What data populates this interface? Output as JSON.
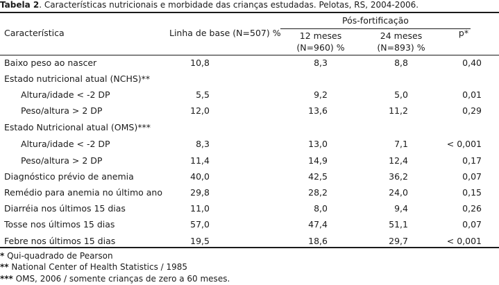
{
  "caption": {
    "label": "Tabela 2",
    "text": ". Características nutricionais e morbidade das crianças estudadas. Pelotas, RS, 2004-2006."
  },
  "header": {
    "characteristic": "Característica",
    "baseline": "Linha de base (N=507) %",
    "post": "Pós-fortificação",
    "m12_line1": "12 meses",
    "m12_line2": "(N=960) %",
    "m24_line1": "24 meses",
    "m24_line2": "(N=893) %",
    "p": "p*"
  },
  "rows": [
    {
      "label": "Baixo peso ao nascer",
      "indent": false,
      "baseline": "10,8",
      "m12": "8,3",
      "m24": "8,8",
      "p": "0,40"
    },
    {
      "label": "Estado nutricional atual (NCHS)**",
      "indent": false,
      "baseline": "",
      "m12": "",
      "m24": "",
      "p": ""
    },
    {
      "label": "Altura/idade < -2 DP",
      "indent": true,
      "baseline": "5,5",
      "m12": "9,2",
      "m24": "5,0",
      "p": "0,01"
    },
    {
      "label": "Peso/altura > 2 DP",
      "indent": true,
      "baseline": "12,0",
      "m12": "13,6",
      "m24": "11,2",
      "p": "0,29"
    },
    {
      "label": "Estado Nutricional atual (OMS)***",
      "indent": false,
      "baseline": "",
      "m12": "",
      "m24": "",
      "p": ""
    },
    {
      "label": "Altura/idade < -2 DP",
      "indent": true,
      "baseline": "8,3",
      "m12": "13,0",
      "m24": "7,1",
      "p": "< 0,001"
    },
    {
      "label": "Peso/altura > 2 DP",
      "indent": true,
      "baseline": "11,4",
      "m12": "14,9",
      "m24": "12,4",
      "p": "0,17"
    },
    {
      "label": "Diagnóstico prévio de anemia",
      "indent": false,
      "baseline": "40,0",
      "m12": "42,5",
      "m24": "36,2",
      "p": "0,07"
    },
    {
      "label": "Remédio para anemia no último ano",
      "indent": false,
      "baseline": "29,8",
      "m12": "28,2",
      "m24": "24,0",
      "p": "0,15"
    },
    {
      "label": "Diarréia nos últimos 15 dias",
      "indent": false,
      "baseline": "11,0",
      "m12": "8,0",
      "m24": "9,4",
      "p": "0,26"
    },
    {
      "label": "Tosse nos últimos 15 dias",
      "indent": false,
      "baseline": "57,0",
      "m12": "47,4",
      "m24": "51,1",
      "p": "0,07"
    },
    {
      "label": "Febre nos últimos 15 dias",
      "indent": false,
      "baseline": "19,5",
      "m12": "18,6",
      "m24": "29,7",
      "p": "< 0,001"
    }
  ],
  "footnotes": [
    {
      "mark": "*",
      "text": " Qui-quadrado de Pearson"
    },
    {
      "mark": "**",
      "text": " National Center of Health Statistics / 1985"
    },
    {
      "mark": "***",
      "text": " OMS, 2006 / somente crianças de zero a 60 meses."
    }
  ]
}
